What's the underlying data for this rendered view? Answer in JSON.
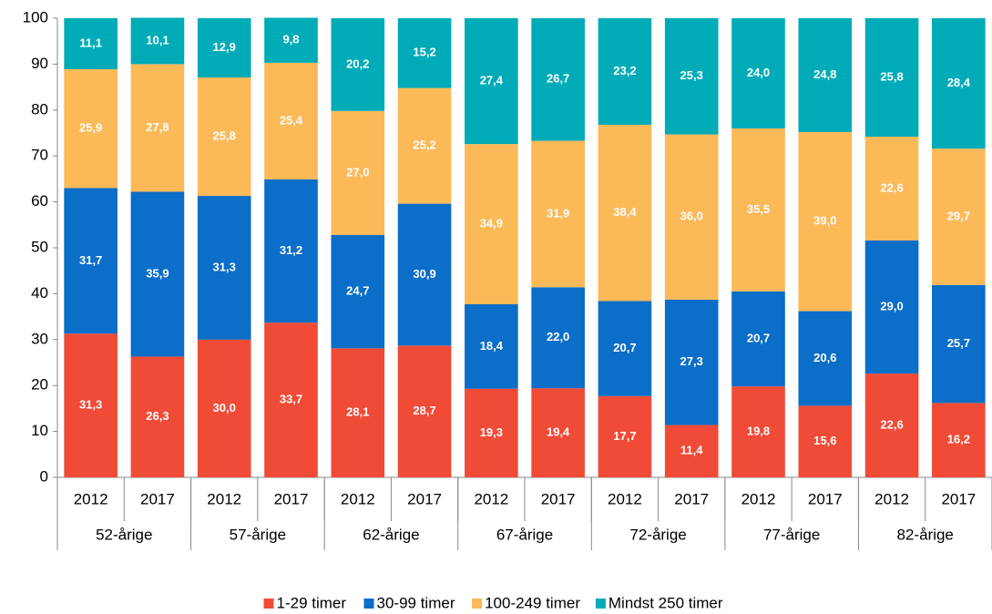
{
  "chart_data": {
    "type": "stacked_bar",
    "categories": [
      "2012",
      "2017",
      "2012",
      "2017",
      "2012",
      "2017",
      "2012",
      "2017",
      "2012",
      "2017",
      "2012",
      "2017",
      "2012",
      "2017"
    ],
    "groups": [
      "52-årige",
      "57-årige",
      "62-årige",
      "67-årige",
      "72-årige",
      "77-årige",
      "82-årige"
    ],
    "series": [
      {
        "name": "1-29 timer",
        "color": "#f04b37",
        "values": [
          31.3,
          26.3,
          30.0,
          33.7,
          28.1,
          28.7,
          19.3,
          19.4,
          17.7,
          11.4,
          19.8,
          15.6,
          22.6,
          16.2
        ],
        "value_labels": [
          "31,3",
          "26,3",
          "30,0",
          "33,7",
          "28,1",
          "28,7",
          "19,3",
          "19,4",
          "17,7",
          "11,4",
          "19,8",
          "15,6",
          "22,6",
          "16,2"
        ]
      },
      {
        "name": "30-99 timer",
        "color": "#0b6ec8",
        "values": [
          31.7,
          35.9,
          31.3,
          31.2,
          24.7,
          30.9,
          18.4,
          22.0,
          20.7,
          27.3,
          20.7,
          20.6,
          29.0,
          25.7
        ],
        "value_labels": [
          "31,7",
          "35,9",
          "31,3",
          "31,2",
          "24,7",
          "30,9",
          "18,4",
          "22,0",
          "20,7",
          "27,3",
          "20,7",
          "20,6",
          "29,0",
          "25,7"
        ]
      },
      {
        "name": "100-249 timer",
        "color": "#fbb958",
        "values": [
          25.9,
          27.8,
          25.8,
          25.4,
          27.0,
          25.2,
          34.9,
          31.9,
          38.4,
          36.0,
          35.5,
          39.0,
          22.6,
          29.7
        ],
        "value_labels": [
          "25,9",
          "27,8",
          "25,8",
          "25,4",
          "27,0",
          "25,2",
          "34,9",
          "31,9",
          "38,4",
          "36,0",
          "35,5",
          "39,0",
          "22,6",
          "29,7"
        ]
      },
      {
        "name": "Mindst 250 timer",
        "color": "#00abb8",
        "values": [
          11.1,
          10.1,
          12.9,
          9.8,
          20.2,
          15.2,
          27.4,
          26.7,
          23.2,
          25.3,
          24.0,
          24.8,
          25.8,
          28.4
        ],
        "value_labels": [
          "11,1",
          "10,1",
          "12,9",
          "9,8",
          "20,2",
          "15,2",
          "27,4",
          "26,7",
          "23,2",
          "25,3",
          "24,0",
          "24,8",
          "25,8",
          "28,4"
        ]
      }
    ],
    "ylim": [
      0,
      100
    ],
    "yticks": [
      0,
      10,
      20,
      30,
      40,
      50,
      60,
      70,
      80,
      90,
      100
    ],
    "grid": false,
    "legend": "bottom"
  }
}
